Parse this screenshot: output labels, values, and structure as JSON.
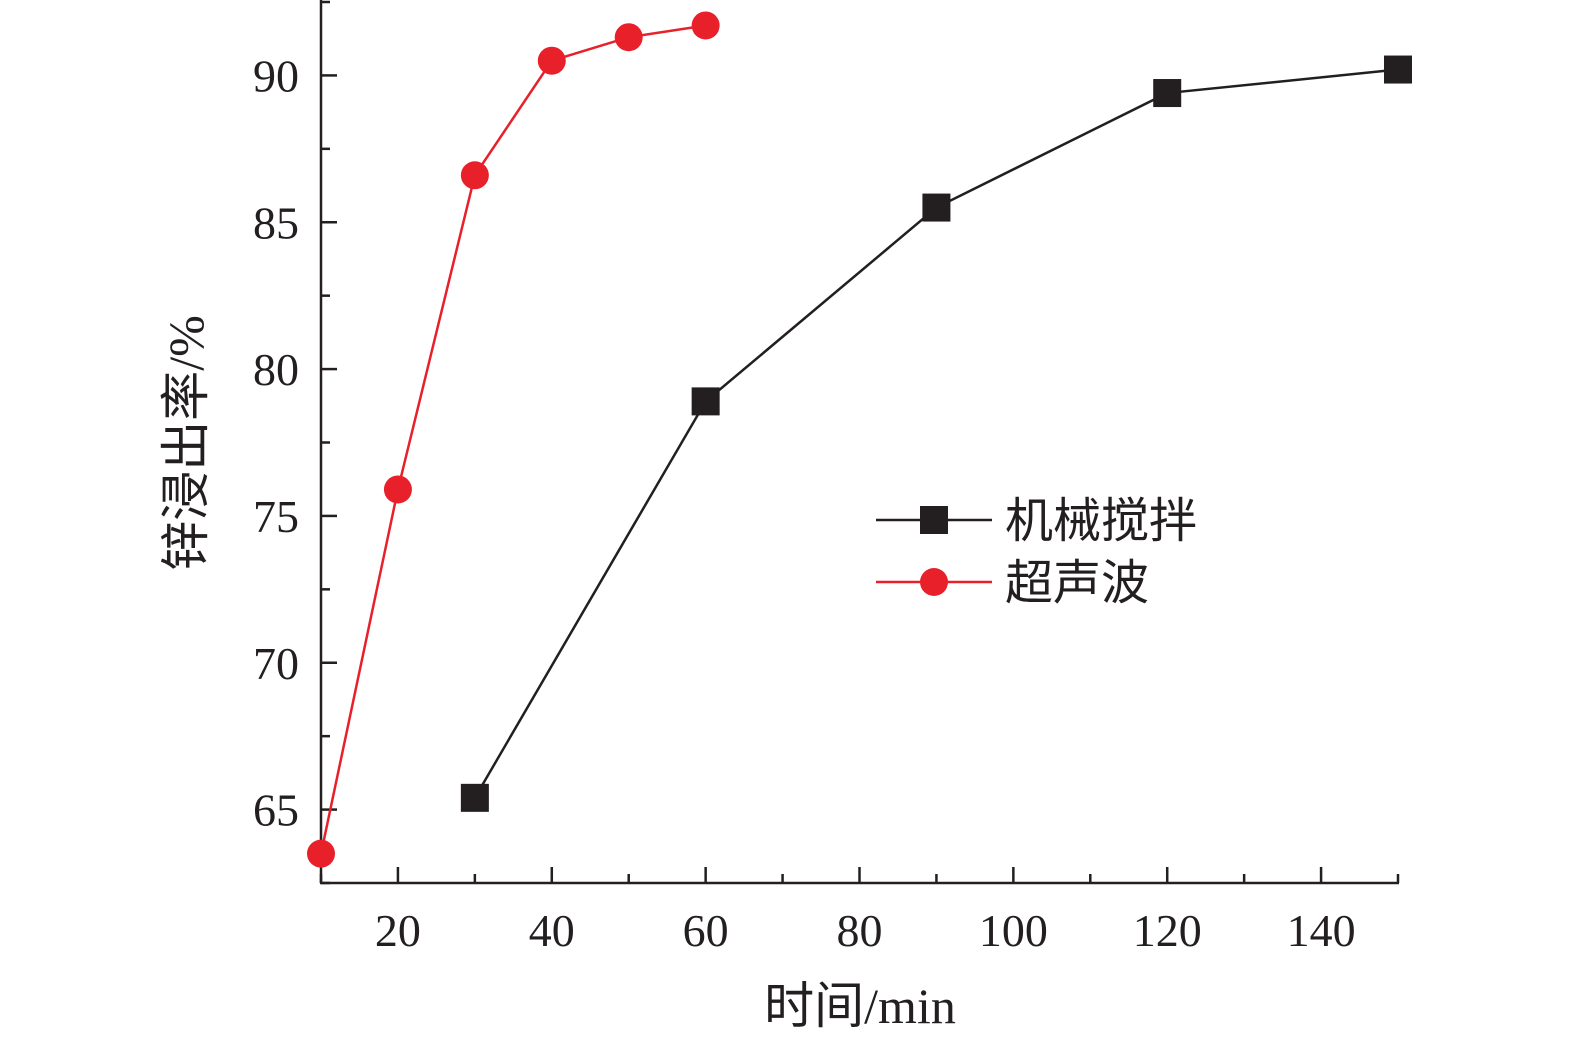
{
  "chart_data": {
    "type": "line",
    "title": "",
    "xlabel": "时间/min",
    "ylabel": "锌浸出率/%",
    "xlim": [
      10,
      150
    ],
    "ylim": [
      62.5,
      92.5
    ],
    "x_ticks": [
      20,
      40,
      60,
      80,
      100,
      120,
      140
    ],
    "x_minor_ticks": [
      10,
      30,
      50,
      70,
      90,
      110,
      130,
      150
    ],
    "y_ticks": [
      65,
      70,
      75,
      80,
      85,
      90
    ],
    "y_minor_ticks": [
      62.5,
      67.5,
      72.5,
      77.5,
      82.5,
      87.5,
      92.5
    ],
    "grid": false,
    "legend_position": "center-right",
    "series": [
      {
        "name": "机械搅拌",
        "marker": "square",
        "color": "#231f20",
        "x": [
          30,
          60,
          90,
          120,
          150
        ],
        "y": [
          65.4,
          78.9,
          85.5,
          89.4,
          90.2
        ]
      },
      {
        "name": "超声波",
        "marker": "circle",
        "color": "#e8202a",
        "x": [
          10,
          20,
          30,
          40,
          50,
          60
        ],
        "y": [
          63.5,
          75.9,
          86.6,
          90.5,
          91.3,
          91.7
        ]
      }
    ]
  }
}
